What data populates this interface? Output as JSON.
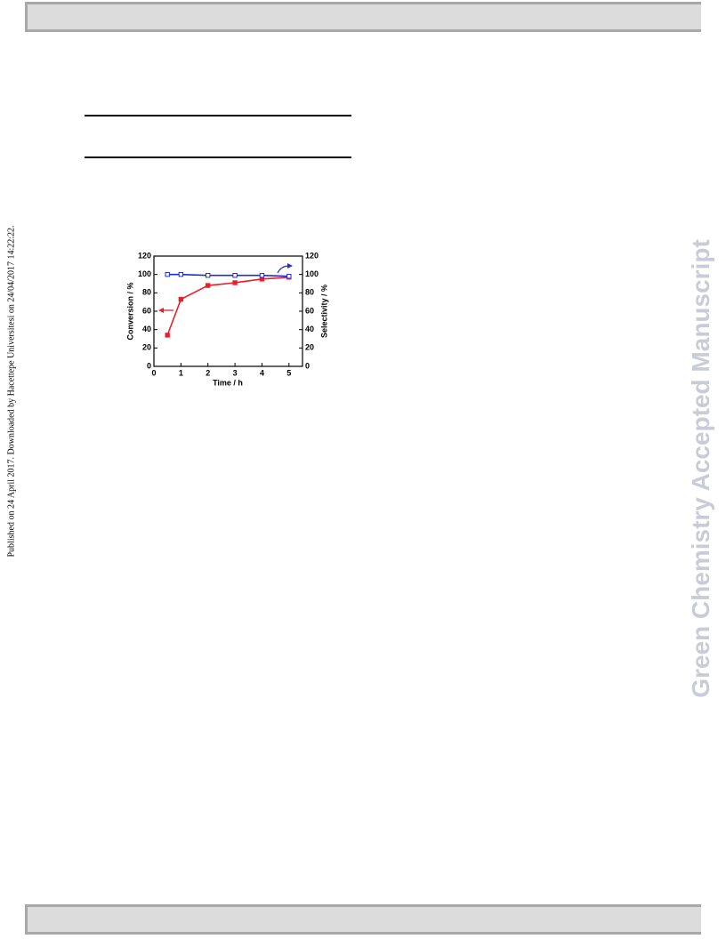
{
  "side_note": "Published on 24 April 2017. Downloaded by Hacettepe Universitesi on 24/04/2017 14:22:22.",
  "watermark": "Green Chemistry Accepted Manuscript",
  "chart_data": {
    "type": "line",
    "xlabel": "Time / h",
    "ylabel": "Conversion / %",
    "y2label": "Selectivity / %",
    "x": [
      0.5,
      1,
      2,
      3,
      4,
      5
    ],
    "series": [
      {
        "color": "#e8202a",
        "marker": "filled-square",
        "values": [
          34,
          73,
          88,
          91,
          95,
          97
        ]
      },
      {
        "color": "#1f2fd0",
        "marker": "open-square",
        "axis": "y2",
        "values": [
          100,
          100,
          99,
          99,
          99,
          98
        ]
      }
    ],
    "xlim": [
      0,
      5.5
    ],
    "xticks": [
      0,
      1,
      2,
      3,
      4,
      5
    ],
    "ylim": [
      0,
      120
    ],
    "yticks": [
      0,
      20,
      40,
      60,
      80,
      100,
      120
    ],
    "y2lim": [
      0,
      120
    ],
    "y2ticks": [
      0,
      20,
      40,
      60,
      80,
      100,
      120
    ]
  }
}
